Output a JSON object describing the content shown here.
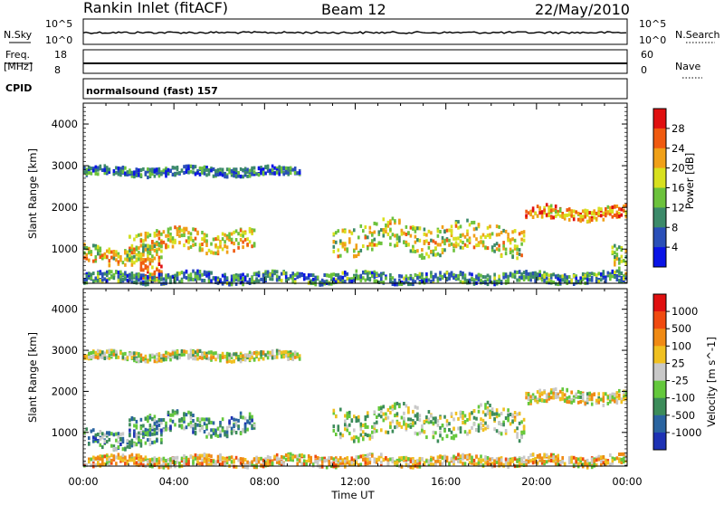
{
  "header": {
    "title": "Rankin Inlet (fitACF)",
    "beam": "Beam 12",
    "date": "22/May/2010"
  },
  "status_panels": {
    "nsky_label": "N.Sky",
    "nsky_ticks": [
      "10^5",
      "10^0"
    ],
    "nsearch_label": "N.Search",
    "nsearch_ticks": [
      "10^5",
      "10^0"
    ],
    "freq_label": "Freq.",
    "freq_unit": "[MHz]",
    "freq_ticks": [
      "18",
      "8"
    ],
    "nave_label": "Nave",
    "nave_ticks": [
      "60",
      "0"
    ],
    "cpid_label": "CPID",
    "cpid_text": "normalsound (fast) 157"
  },
  "chart_data": [
    {
      "type": "heatmap",
      "quantity": "Power",
      "ylabel": "Slant Range [km]",
      "xlabel": "Time UT",
      "y_ticks": [
        "4000",
        "3000",
        "2000",
        "1000"
      ],
      "x_ticks": [
        "00:00",
        "04:00",
        "08:00",
        "12:00",
        "16:00",
        "20:00",
        "00:00"
      ],
      "xlim_hours": [
        0,
        24
      ],
      "ylim_km": [
        180,
        4500
      ],
      "colorbar": {
        "label": "Power [dB]",
        "tick_labels": [
          "28",
          "24",
          "20",
          "16",
          "12",
          "8",
          "4"
        ],
        "colors": [
          "#0a14e6",
          "#2a4fb8",
          "#3c8a6a",
          "#6cc23c",
          "#d8e01e",
          "#f0a018",
          "#f05a10",
          "#e01010"
        ]
      },
      "echo_regions": [
        {
          "t_start": 0.0,
          "t_end": 9.5,
          "r_center": 2900,
          "r_halfwidth": 100,
          "level": 0.25
        },
        {
          "t_start": 2.0,
          "t_end": 7.5,
          "r_center": 1250,
          "r_halfwidth": 250,
          "level": 0.6
        },
        {
          "t_start": 0.0,
          "t_end": 3.5,
          "r_center": 900,
          "r_halfwidth": 200,
          "level": 0.55
        },
        {
          "t_start": 2.5,
          "t_end": 3.5,
          "r_center": 450,
          "r_halfwidth": 250,
          "level": 0.8
        },
        {
          "t_start": 11.0,
          "t_end": 19.5,
          "r_center": 1300,
          "r_halfwidth": 350,
          "level": 0.55
        },
        {
          "t_start": 19.5,
          "t_end": 24.0,
          "r_center": 1900,
          "r_halfwidth": 150,
          "level": 0.7
        },
        {
          "t_start": 0.0,
          "t_end": 24.0,
          "r_center": 350,
          "r_halfwidth": 120,
          "level": 0.3
        },
        {
          "t_start": 23.3,
          "t_end": 24.0,
          "r_center": 800,
          "r_halfwidth": 300,
          "level": 0.5
        }
      ]
    },
    {
      "type": "heatmap",
      "quantity": "Velocity",
      "ylabel": "Slant Range [km]",
      "xlabel": "Time UT",
      "y_ticks": [
        "4000",
        "3000",
        "2000",
        "1000"
      ],
      "x_ticks": [
        "00:00",
        "04:00",
        "08:00",
        "12:00",
        "16:00",
        "20:00",
        "00:00"
      ],
      "xlim_hours": [
        0,
        24
      ],
      "ylim_km": [
        180,
        4500
      ],
      "colorbar": {
        "label": "Velocity [m s^-1]",
        "tick_labels": [
          "1000",
          "500",
          "100",
          "25",
          "-25",
          "-100",
          "-500",
          "-1000"
        ],
        "colors": [
          "#1e32b4",
          "#2a64a0",
          "#3c8c5a",
          "#64c83c",
          "#c8c8c8",
          "#f0c020",
          "#f08a14",
          "#f04a10",
          "#e01010"
        ]
      },
      "echo_regions": [
        {
          "t_start": 0.0,
          "t_end": 9.5,
          "r_center": 2900,
          "r_halfwidth": 100,
          "level": 0.5
        },
        {
          "t_start": 2.0,
          "t_end": 7.5,
          "r_center": 1250,
          "r_halfwidth": 250,
          "level": 0.3
        },
        {
          "t_start": 0.0,
          "t_end": 3.5,
          "r_center": 900,
          "r_halfwidth": 200,
          "level": 0.3
        },
        {
          "t_start": 11.0,
          "t_end": 19.5,
          "r_center": 1300,
          "r_halfwidth": 350,
          "level": 0.45
        },
        {
          "t_start": 19.5,
          "t_end": 24.0,
          "r_center": 1900,
          "r_halfwidth": 150,
          "level": 0.55
        },
        {
          "t_start": 0.0,
          "t_end": 24.0,
          "r_center": 350,
          "r_halfwidth": 120,
          "level": 0.6
        }
      ]
    }
  ]
}
